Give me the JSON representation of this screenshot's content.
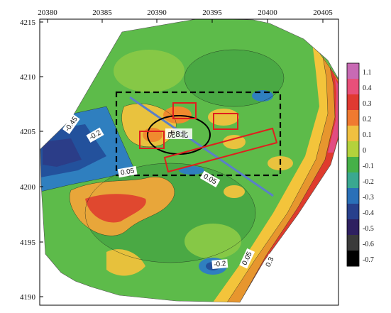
{
  "map": {
    "x_ticks": [
      "20380",
      "20385",
      "20390",
      "20395",
      "20400",
      "20405"
    ],
    "y_ticks": [
      "4215",
      "4210",
      "4205",
      "4200",
      "4195",
      "4190"
    ],
    "area_label": "虎8北",
    "contour_labels": [
      "-0.45",
      "-0.2",
      "0.05",
      "0.05",
      "-0.2",
      "0.05",
      "0.3"
    ]
  },
  "colorbar": {
    "labels": [
      "1.1",
      "0.4",
      "0.3",
      "0.2",
      "0.1",
      "0",
      "-0.1",
      "-0.2",
      "-0.3",
      "-0.4",
      "-0.5",
      "-0.6",
      "-0.7"
    ],
    "colors": [
      "#c86ab4",
      "#e8507a",
      "#e03a32",
      "#f07a30",
      "#f0c040",
      "#b4d23c",
      "#46b048",
      "#3aa890",
      "#2a70b8",
      "#28408c",
      "#2e2060",
      "#3a3a3a",
      "#000000"
    ]
  },
  "colors": {
    "frame": "#000000",
    "survey_box": "#000000",
    "profile_line": "#5a7fc8",
    "target_boxes": "#e01e1e"
  }
}
